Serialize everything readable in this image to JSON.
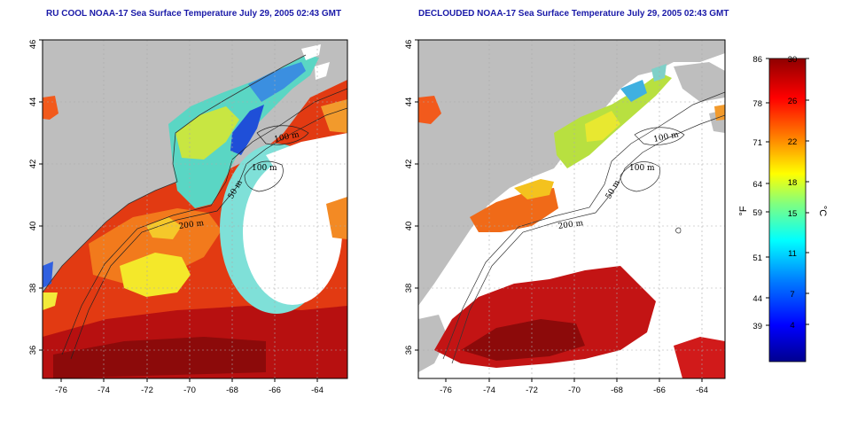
{
  "titles": {
    "left": "RU COOL NOAA-17 Sea Surface Temperature July 29, 2005 02:43 GMT",
    "right": "DECLOUDED NOAA-17 Sea Surface Temperature July 29, 2005 02:43 GMT"
  },
  "axes": {
    "lat_ticks": [
      "46",
      "44",
      "42",
      "40",
      "38",
      "36"
    ],
    "lon_ticks": [
      "-76",
      "-74",
      "-72",
      "-70",
      "-68",
      "-66",
      "-64"
    ]
  },
  "contour_labels": {
    "m100": "100 m",
    "m50": "50 m",
    "m200": "200 m",
    "m100_upper": "100 m"
  },
  "colorbar": {
    "fahrenheit_ticks": [
      "86",
      "78",
      "71",
      "64",
      "59",
      "51",
      "44",
      "39"
    ],
    "celsius_ticks": [
      "30",
      "26",
      "22",
      "18",
      "15",
      "11",
      "7",
      "4"
    ],
    "unit_f": "°F",
    "unit_c": "°C",
    "colors": [
      "#00008f",
      "#0000ff",
      "#0080ff",
      "#00ffff",
      "#80ff80",
      "#ffff00",
      "#ff8000",
      "#ff0000",
      "#8f0000"
    ]
  },
  "colors": {
    "land": "#bebebe",
    "cloud_mask": "#ffffff",
    "grid": "#aaaaaa"
  }
}
